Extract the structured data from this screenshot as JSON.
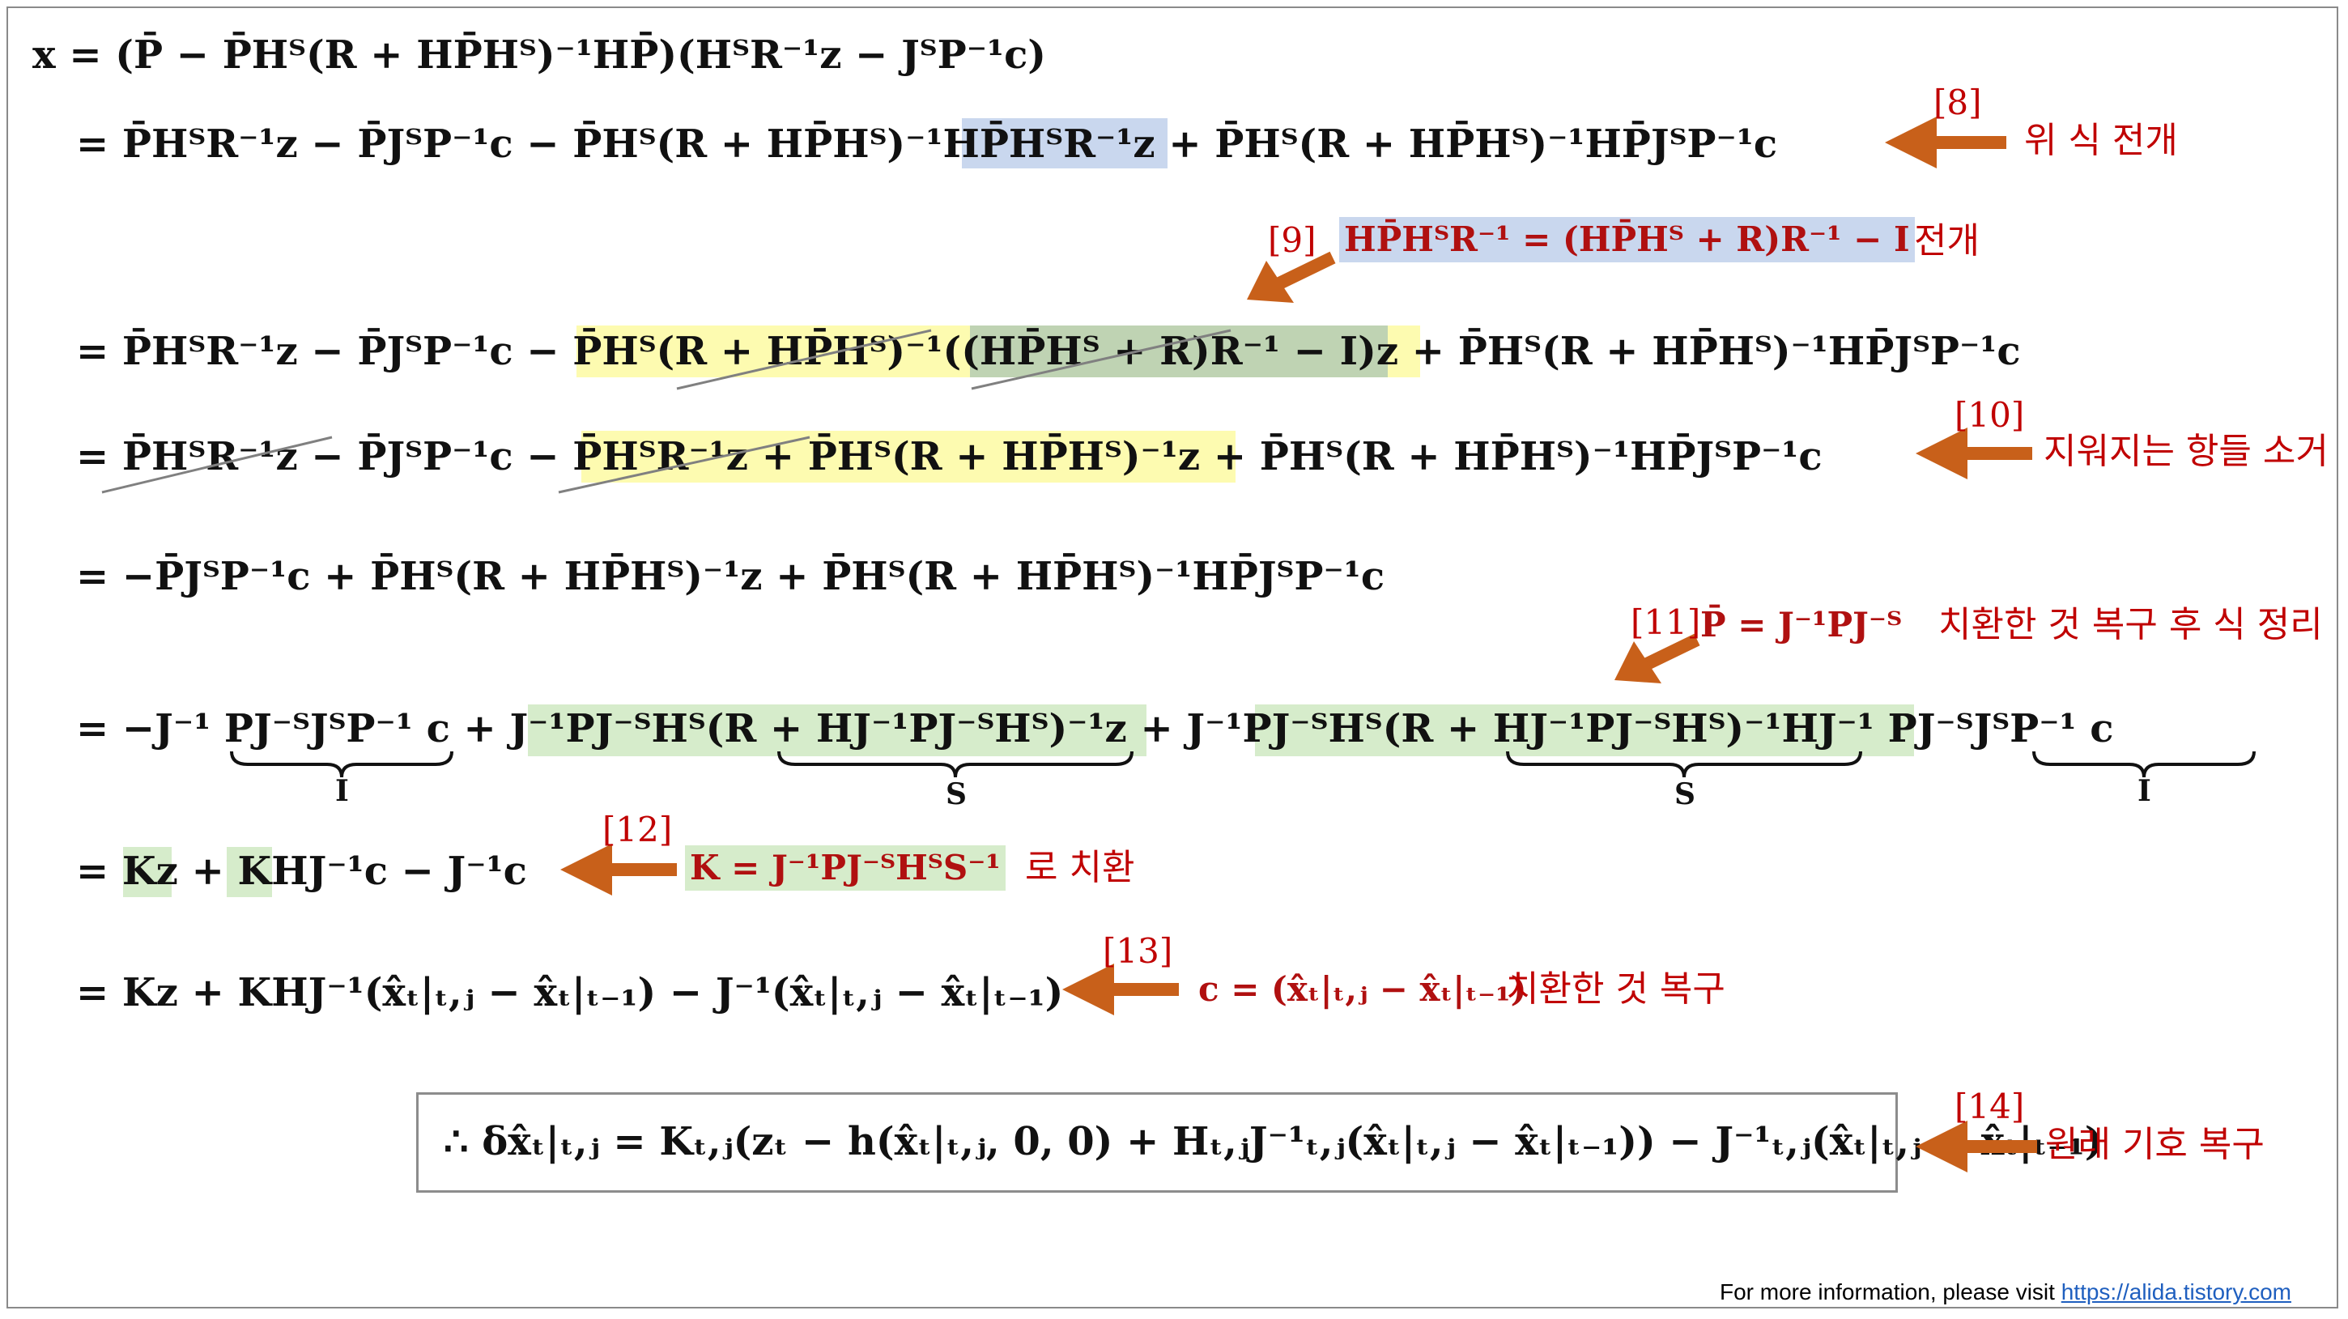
{
  "equations": {
    "line1": "x = (P̄ − P̄Hᵀ(R + HP̄Hᵀ)⁻¹HP̄)(HᵀR⁻¹z − JᵀP⁻¹c)",
    "line2": "= P̄HᵀR⁻¹z − P̄JᵀP⁻¹c − P̄Hᵀ(R + HP̄Hᵀ)⁻¹HP̄HᵀR⁻¹z + P̄Hᵀ(R + HP̄Hᵀ)⁻¹HP̄JᵀP⁻¹c",
    "line3": "= P̄HᵀR⁻¹z − P̄JᵀP⁻¹c − P̄Hᵀ(R + HP̄Hᵀ)⁻¹((HP̄Hᵀ + R)R⁻¹ − I)z + P̄Hᵀ(R + HP̄Hᵀ)⁻¹HP̄JᵀP⁻¹c",
    "line4": "= P̄HᵀR⁻¹z − P̄JᵀP⁻¹c − P̄HᵀR⁻¹z + P̄Hᵀ(R + HP̄Hᵀ)⁻¹z + P̄Hᵀ(R + HP̄Hᵀ)⁻¹HP̄JᵀP⁻¹c",
    "line5": "= −P̄JᵀP⁻¹c + P̄Hᵀ(R + HP̄Hᵀ)⁻¹z + P̄Hᵀ(R + HP̄Hᵀ)⁻¹HP̄JᵀP⁻¹c",
    "line6": "= −J⁻¹ PJ⁻ᵀJᵀP⁻¹ c + J⁻¹PJ⁻ᵀHᵀ(R + HJ⁻¹PJ⁻ᵀHᵀ)⁻¹z + J⁻¹PJ⁻ᵀHᵀ(R + HJ⁻¹PJ⁻ᵀHᵀ)⁻¹HJ⁻¹ PJ⁻ᵀJᵀP⁻¹ c",
    "line6_braces": [
      "I",
      "S",
      "S",
      "I"
    ],
    "line7": "= Kz + KHJ⁻¹c − J⁻¹c",
    "line8": "= Kz + KHJ⁻¹(x̂ₜ|ₜ,ⱼ − x̂ₜ|ₜ₋₁) − J⁻¹(x̂ₜ|ₜ,ⱼ − x̂ₜ|ₜ₋₁)",
    "final": "∴ δx̂ₜ|ₜ,ⱼ = Kₜ,ⱼ(zₜ − h(x̂ₜ|ₜ,ⱼ, 0, 0) + Hₜ,ⱼJ⁻¹ₜ,ⱼ(x̂ₜ|ₜ,ⱼ − x̂ₜ|ₜ₋₁)) − J⁻¹ₜ,ⱼ(x̂ₜ|ₜ,ⱼ − x̂ₜ|ₜ₋₁)"
  },
  "annotations": {
    "a8": {
      "ref": "[8]",
      "text": "위 식 전개"
    },
    "a9": {
      "ref": "[9]",
      "formula": "HP̄HᵀR⁻¹ = (HP̄Hᵀ + R)R⁻¹ − I",
      "text": "전개"
    },
    "a10": {
      "ref": "[10]",
      "text": "지워지는 항들 소거"
    },
    "a11": {
      "ref": "[11]",
      "formula": "P̄ = J⁻¹PJ⁻ᵀ",
      "text": "치환한 것 복구 후 식 정리"
    },
    "a12": {
      "ref": "[12]",
      "formula": "K = J⁻¹PJ⁻ᵀHᵀS⁻¹",
      "text": "로 치환"
    },
    "a13": {
      "ref": "[13]",
      "formula": "c = (x̂ₜ|ₜ,ⱼ − x̂ₜ|ₜ₋₁)",
      "text": "치환한 것 복구"
    },
    "a14": {
      "ref": "[14]",
      "text": "원래 기호 복구"
    }
  },
  "colors": {
    "arrow": "#c8601a",
    "annotation_text": "#c00000",
    "highlight_blue": "#c9d7ee",
    "highlight_yellow": "#fdfbb0",
    "highlight_green": "#d6eccb",
    "highlight_dark_green": "#bfd3b3"
  },
  "footer": {
    "prefix": "For more information, please visit ",
    "link": "https://alida.tistory.com"
  }
}
